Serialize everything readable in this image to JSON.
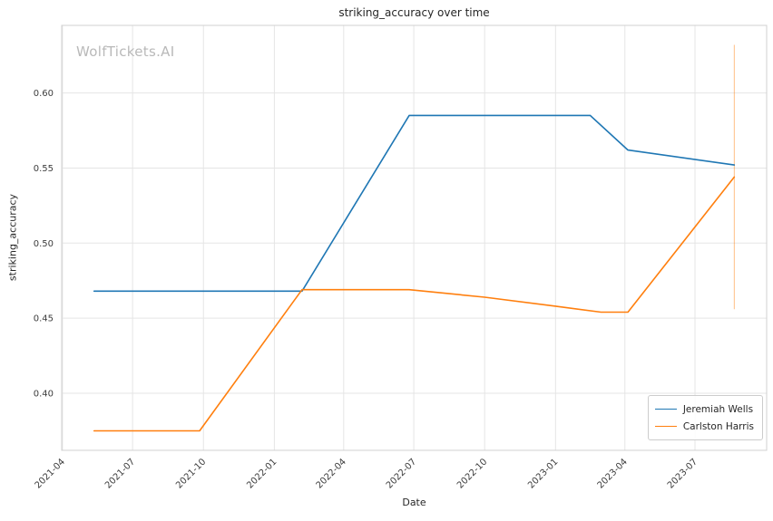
{
  "colors": {
    "background": "#ffffff",
    "grid": "#e5e5e5",
    "spine": "#d0d0d0",
    "tick_text": "#3d3d3d",
    "title_text": "#262626",
    "watermark_text": "#b9b9b9",
    "series_blue": "#1f77b4",
    "series_orange": "#ff7f0e"
  },
  "chart_data": {
    "type": "line",
    "title": "striking_accuracy over time",
    "watermark": "WolfTickets.AI",
    "xlabel": "Date",
    "ylabel": "striking_accuracy",
    "grid": true,
    "legend_position": "lower right",
    "xlim": [
      "2021-03-31",
      "2023-10-02"
    ],
    "ylim": [
      0.362,
      0.645
    ],
    "yticks": [
      0.4,
      0.45,
      0.5,
      0.55,
      0.6
    ],
    "ytick_labels": [
      "0.40",
      "0.45",
      "0.50",
      "0.55",
      "0.60"
    ],
    "xticks": [
      "2021-04-01",
      "2021-07-01",
      "2021-10-01",
      "2022-01-01",
      "2022-04-01",
      "2022-07-01",
      "2022-10-01",
      "2023-01-01",
      "2023-04-01",
      "2023-07-01"
    ],
    "xtick_labels": [
      "2021-04",
      "2021-07",
      "2021-10",
      "2022-01",
      "2022-04",
      "2022-07",
      "2022-10",
      "2023-01",
      "2023-04",
      "2023-07"
    ],
    "series": [
      {
        "name": "Jeremiah Wells",
        "color": "#1f77b4",
        "points": [
          [
            "2021-05-12",
            0.468
          ],
          [
            "2022-02-06",
            0.468
          ],
          [
            "2022-06-25",
            0.585
          ],
          [
            "2023-02-15",
            0.585
          ],
          [
            "2023-04-05",
            0.562
          ],
          [
            "2023-08-21",
            0.552
          ]
        ]
      },
      {
        "name": "Carlston Harris",
        "color": "#ff7f0e",
        "points": [
          [
            "2021-05-12",
            0.375
          ],
          [
            "2021-09-26",
            0.375
          ],
          [
            "2022-02-06",
            0.469
          ],
          [
            "2022-06-25",
            0.469
          ],
          [
            "2022-10-01",
            0.464
          ],
          [
            "2023-01-01",
            0.458
          ],
          [
            "2023-03-01",
            0.454
          ],
          [
            "2023-04-05",
            0.454
          ],
          [
            "2023-08-21",
            0.544
          ]
        ]
      }
    ],
    "vline": {
      "x": "2023-08-21",
      "y0": 0.456,
      "y1": 0.632,
      "color": "#ff7f0e",
      "opacity": 0.5
    }
  }
}
